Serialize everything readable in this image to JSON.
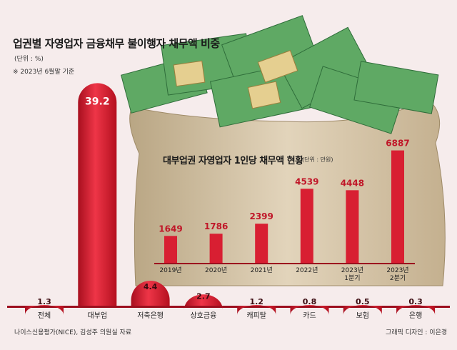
{
  "title": "업권별 자영업자 금융채무 불이행자 채무액 비중",
  "unit": "(단위 : %)",
  "note": "※ 2023년 6월말 기준",
  "inset_title": "대부업권 자영업자 1인당 채무액 현황",
  "inset_unit": "(단위 : 만원)",
  "source": "나이스신용평가(NICE), 김성주 의원실 자료",
  "credit": "그래픽 디자인 : 이은경",
  "background_image": "money-sack-with-won-banknote-bundles-debt-label",
  "colors": {
    "bar": "#d81f32",
    "bar_dark": "#9c0f1e",
    "bar_light": "#f0505f",
    "background": "#f6ecec",
    "sack": "#d8c8ae",
    "money": "#5fa964"
  },
  "chart_data": [
    {
      "type": "bar",
      "title": "업권별 자영업자 금융채무 불이행자 채무액 비중",
      "unit": "%",
      "categories": [
        "전체",
        "대부업",
        "저축은행",
        "상호금융",
        "캐피탈",
        "카드",
        "보험",
        "은행"
      ],
      "values": [
        1.3,
        39.2,
        4.4,
        2.7,
        1.2,
        0.8,
        0.5,
        0.3
      ],
      "ylim": [
        0,
        40
      ],
      "grid": false,
      "legend": "none"
    },
    {
      "type": "bar",
      "title": "대부업권 자영업자 1인당 채무액 현황",
      "unit": "만원",
      "categories": [
        "2019년",
        "2020년",
        "2021년",
        "2022년",
        "2023년\n1분기",
        "2023년\n2분기"
      ],
      "values": [
        1649,
        1786,
        2399,
        4539,
        4448,
        6887
      ],
      "ylim": [
        0,
        7000
      ],
      "grid": false,
      "legend": "none"
    }
  ]
}
